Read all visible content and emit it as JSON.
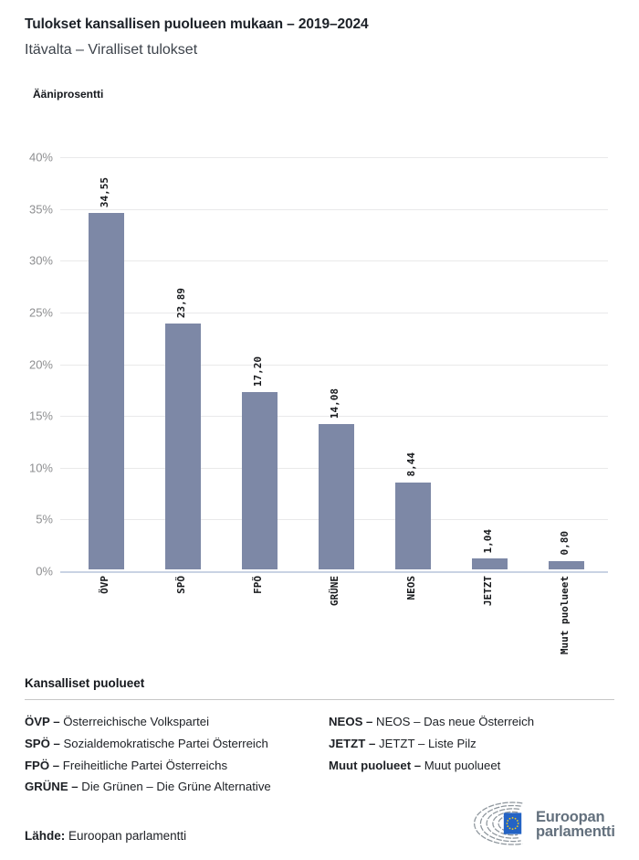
{
  "header": {
    "title": "Tulokset kansallisen puolueen mukaan – 2019–2024",
    "subtitle": "Itävalta – Viralliset tulokset"
  },
  "chart_data": {
    "type": "bar",
    "title": "Tulokset kansallisen puolueen mukaan – 2019–2024",
    "subtitle": "Itävalta – Viralliset tulokset",
    "ylabel": "Ääniprosentti",
    "xlabel": "",
    "categories": [
      "ÖVP",
      "SPÖ",
      "FPÖ",
      "GRÜNE",
      "NEOS",
      "JETZT",
      "Muut puolueet"
    ],
    "values": [
      34.55,
      23.89,
      17.2,
      14.08,
      8.44,
      1.04,
      0.8
    ],
    "value_labels": [
      "34,55",
      "23,89",
      "17,20",
      "14,08",
      "8,44",
      "1,04",
      "0,80"
    ],
    "y_ticks": [
      "40%",
      "35%",
      "30%",
      "25%",
      "20%",
      "15%",
      "10%",
      "5%",
      "0%"
    ],
    "ylim": [
      0,
      40
    ],
    "grid": true,
    "legend_position": "none",
    "bar_color": "#7d88a6"
  },
  "legend": {
    "heading": "Kansalliset puolueet",
    "columns": [
      [
        {
          "abbr": "ÖVP –",
          "name": "Österreichische Volkspartei"
        },
        {
          "abbr": "SPÖ –",
          "name": "Sozialdemokratische Partei Österreich"
        },
        {
          "abbr": "FPÖ –",
          "name": "Freiheitliche Partei Österreichs"
        },
        {
          "abbr": "GRÜNE –",
          "name": "Die Grünen – Die Grüne Alternative"
        }
      ],
      [
        {
          "abbr": "NEOS –",
          "name": "NEOS – Das neue Österreich"
        },
        {
          "abbr": "JETZT –",
          "name": "JETZT – Liste Pilz"
        },
        {
          "abbr": "Muut puolueet –",
          "name": "Muut puolueet"
        }
      ]
    ]
  },
  "footer": {
    "source_label": "Lähde:",
    "source_value": "Euroopan parlamentti",
    "logo_line1": "Euroopan",
    "logo_line2": "parlamentti"
  }
}
